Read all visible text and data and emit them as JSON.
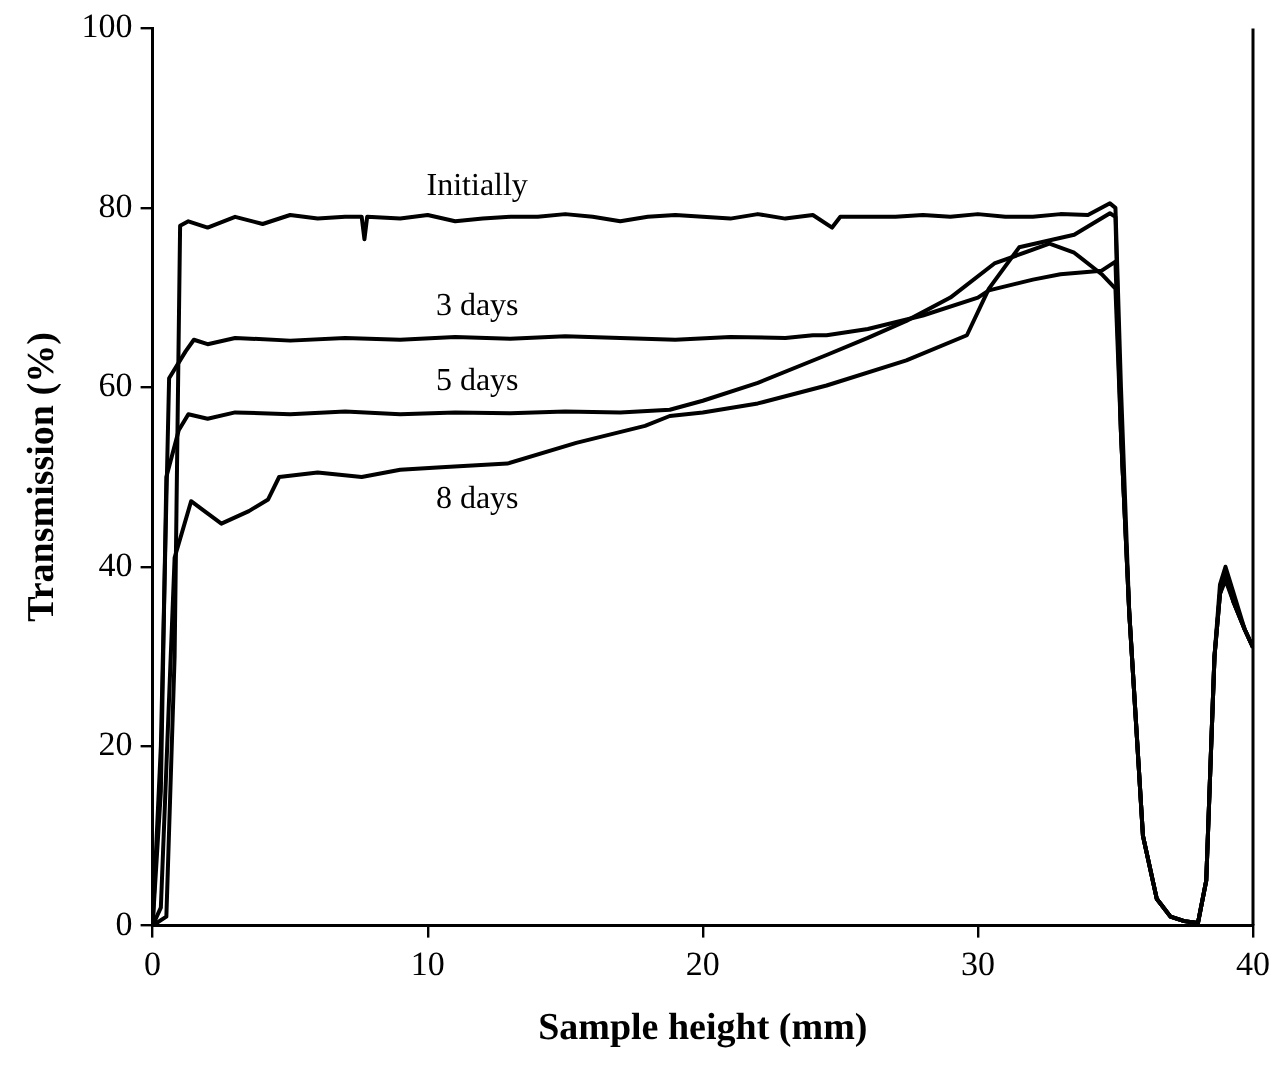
{
  "chart_data": {
    "type": "line",
    "xlabel": "Sample height (mm)",
    "ylabel": "Transmission (%)",
    "xlim": [
      0,
      40
    ],
    "xticks": [
      0,
      10,
      20,
      30,
      40
    ],
    "ylim": [
      0,
      100
    ],
    "yticks": [
      0,
      20,
      40,
      60,
      80,
      100
    ],
    "grid": false,
    "legend": false,
    "marker": "none",
    "line_style": "solid",
    "series": [
      {
        "name": "Initially",
        "color": "#000000",
        "x": [
          0,
          0.5,
          0.8,
          1.0,
          1.3,
          2,
          3,
          4,
          5,
          6,
          7,
          7.6,
          7.7,
          7.8,
          9,
          10,
          11,
          12,
          13,
          14,
          15,
          16,
          17,
          18,
          19,
          20,
          21,
          22,
          23,
          24,
          24.7,
          25,
          26,
          27,
          28,
          29,
          30,
          31,
          32,
          33,
          34,
          34.8,
          35,
          35.2,
          35.5,
          36,
          36.5,
          37,
          37.5,
          38,
          38.3,
          38.6,
          38.8,
          39,
          39.3,
          39.7,
          40
        ],
        "values": [
          0,
          1,
          30,
          78,
          78.5,
          77.8,
          79,
          78.2,
          79.2,
          78.8,
          79,
          79,
          76.5,
          79,
          78.8,
          79.2,
          78.5,
          78.8,
          79,
          79,
          79.3,
          79,
          78.5,
          79,
          79.2,
          79,
          78.8,
          79.3,
          78.8,
          79.2,
          77.8,
          79,
          79,
          79,
          79.2,
          79,
          79.3,
          79,
          79,
          79.3,
          79.2,
          80.5,
          80,
          60,
          35,
          10,
          3,
          1,
          0.5,
          0.3,
          5,
          30,
          38,
          40,
          37,
          33,
          31
        ]
      },
      {
        "name": "3 days",
        "color": "#000000",
        "x": [
          0,
          0.3,
          0.6,
          1.2,
          1.5,
          2,
          3,
          5,
          7,
          9,
          11,
          13,
          15,
          17,
          19,
          21,
          23,
          24,
          24.5,
          26,
          28,
          30,
          30.4,
          32,
          33,
          34.5,
          35,
          35.2,
          35.5,
          36,
          36.5,
          37,
          37.5,
          38,
          38.3,
          38.6,
          38.8,
          39,
          39.3,
          39.7,
          40
        ],
        "values": [
          0,
          20,
          61,
          64,
          65.3,
          64.8,
          65.5,
          65.2,
          65.5,
          65.3,
          65.6,
          65.4,
          65.7,
          65.5,
          65.3,
          65.6,
          65.5,
          65.8,
          65.8,
          66.5,
          68,
          70,
          70.8,
          72,
          72.6,
          73,
          74,
          55,
          35,
          10,
          3,
          1,
          0.5,
          0.3,
          5,
          30,
          37,
          38.5,
          36,
          33,
          31
        ]
      },
      {
        "name": "5 days",
        "color": "#000000",
        "x": [
          0,
          0.3,
          0.5,
          0.95,
          1.3,
          2,
          3,
          5,
          7,
          9,
          11,
          13,
          15,
          17,
          18.8,
          20,
          22,
          24.5,
          26,
          27.4,
          29,
          30.6,
          32.6,
          33.5,
          34.5,
          35,
          35.2,
          35.5,
          36,
          36.5,
          37,
          37.5,
          38,
          38.3,
          38.6,
          38.8,
          39,
          39.3,
          39.7,
          40
        ],
        "values": [
          0,
          15,
          50,
          55.2,
          57,
          56.5,
          57.2,
          57,
          57.3,
          57,
          57.2,
          57.1,
          57.3,
          57.2,
          57.5,
          58.5,
          60.5,
          63.6,
          65.5,
          67.4,
          70,
          73.8,
          76,
          75,
          72.6,
          71,
          55,
          35,
          10,
          3,
          1,
          0.5,
          0.3,
          5,
          30,
          37,
          39,
          36,
          33,
          31
        ]
      },
      {
        "name": "8 days",
        "color": "#000000",
        "x": [
          0,
          0.3,
          0.8,
          1.4,
          2.5,
          3.5,
          4.2,
          4.6,
          6,
          7.6,
          9,
          10.5,
          12.9,
          15.4,
          17.9,
          18.8,
          20,
          22,
          24.5,
          27.4,
          29.6,
          30.4,
          31.5,
          33.5,
          34.8,
          35,
          35.2,
          35.5,
          36,
          36.5,
          37,
          37.5,
          38,
          38.3,
          38.6,
          38.8,
          39,
          39.3,
          39.7,
          40
        ],
        "values": [
          0,
          2,
          41,
          47.3,
          44.8,
          46.2,
          47.5,
          50,
          50.5,
          50,
          50.8,
          51.1,
          51.5,
          53.8,
          55.7,
          56.8,
          57.2,
          58.2,
          60.2,
          63,
          65.8,
          71,
          75.6,
          77,
          79.4,
          79,
          55,
          35,
          10,
          3,
          1,
          0.5,
          0.3,
          5,
          30,
          37,
          39.5,
          36,
          33,
          31
        ]
      }
    ]
  }
}
